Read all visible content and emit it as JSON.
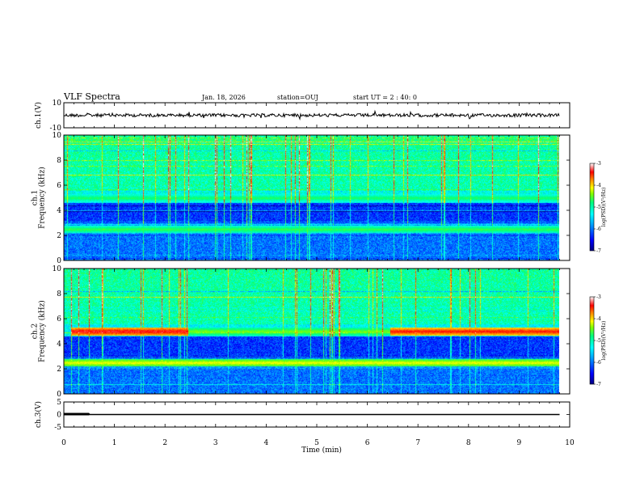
{
  "header": {
    "title": "VLF Spectra",
    "date": "Jan. 18, 2026",
    "station": "station=OUJ",
    "start": "start UT =  2 : 40: 0"
  },
  "colors": {
    "colormap": [
      "#000080",
      "#0000ff",
      "#00a0ff",
      "#00ffff",
      "#00ff80",
      "#80ff00",
      "#ffff00",
      "#ff8000",
      "#ff0000",
      "#ffffff"
    ],
    "trace": "#000000",
    "frame": "#000000"
  },
  "chart_data": [
    {
      "type": "line",
      "ylabel": "ch.1(V)",
      "ylim": [
        -10,
        10
      ],
      "yticks": [
        "10",
        "-10"
      ],
      "xlim": [
        0,
        10
      ],
      "series": [
        {
          "x": [
            0,
            9.8
          ],
          "y": [
            0,
            0
          ]
        }
      ]
    },
    {
      "type": "heatmap",
      "ylabel": "ch.1\nFrequency (kHz)",
      "ylim": [
        0,
        10
      ],
      "yticks": [
        "0",
        "2",
        "4",
        "6",
        "8",
        "10"
      ],
      "xlim": [
        0,
        10
      ],
      "data_xmax": 9.8,
      "colorbar_label": "log(PSD)(V²/Hz)",
      "colorbar_range": [
        -7,
        -3
      ],
      "colorbar_ticks": [
        "-3",
        "-4",
        "-5",
        "-6",
        "-7"
      ],
      "features": [
        {
          "f_khz": 5.0,
          "level": 0.58,
          "x_range": [
            0,
            9.8
          ]
        },
        {
          "f_khz": 2.5,
          "level": 0.6,
          "x_range": [
            0,
            9.8
          ]
        }
      ]
    },
    {
      "type": "heatmap",
      "ylabel": "ch.2\nFrequency (kHz)",
      "ylim": [
        0,
        10
      ],
      "yticks": [
        "0",
        "2",
        "4",
        "6",
        "8",
        "10"
      ],
      "xlim": [
        0,
        10
      ],
      "data_xmax": 9.8,
      "colorbar_label": "log(PSD)(V²/Hz)",
      "colorbar_range": [
        -7,
        -3
      ],
      "colorbar_ticks": [
        "-3",
        "-4",
        "-5",
        "-6",
        "-7"
      ],
      "features": [
        {
          "f_khz": 5.0,
          "level": 0.92,
          "x_range": [
            0.15,
            2.45
          ]
        },
        {
          "f_khz": 5.0,
          "level": 0.9,
          "x_range": [
            6.45,
            9.8
          ]
        },
        {
          "f_khz": 5.0,
          "level": 0.65,
          "x_range": [
            2.45,
            6.45
          ]
        },
        {
          "f_khz": 2.5,
          "level": 0.72,
          "x_range": [
            0,
            9.8
          ]
        }
      ]
    },
    {
      "type": "line",
      "ylabel": "ch.3(V)",
      "ylim": [
        -5,
        5
      ],
      "yticks": [
        "5",
        "0",
        "-5"
      ],
      "xlabel": "Time (min)",
      "xlim": [
        0,
        10
      ],
      "xticks": [
        "0",
        "1",
        "2",
        "3",
        "4",
        "5",
        "6",
        "7",
        "8",
        "9",
        "10"
      ],
      "series": [
        {
          "x": [
            0,
            0.5,
            0.5,
            9.8
          ],
          "y": [
            0.2,
            0.2,
            0,
            0
          ]
        }
      ]
    }
  ]
}
